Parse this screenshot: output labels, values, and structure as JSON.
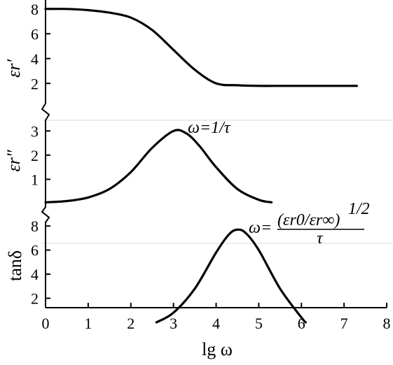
{
  "chart_data": {
    "type": "line",
    "xlabel": "lg ω",
    "x_ticks": [
      "0",
      "1",
      "2",
      "3",
      "4",
      "5",
      "6",
      "7",
      "8"
    ],
    "xlim": [
      0,
      8
    ],
    "panels": [
      {
        "ylabel": "εr′",
        "ylim": [
          1,
          9
        ],
        "y_ticks": [
          "2",
          "4",
          "6",
          "8"
        ],
        "annotation": "",
        "series": [
          {
            "x": [
              0,
              0.5,
              1,
              1.5,
              2,
              2.5,
              3,
              3.5,
              4,
              4.5,
              5,
              5.5,
              6,
              6.5,
              7,
              7.3
            ],
            "y": [
              8.0,
              8.0,
              7.9,
              7.7,
              7.3,
              6.3,
              4.7,
              3.1,
              2.0,
              1.85,
              1.8,
              1.8,
              1.8,
              1.8,
              1.8,
              1.8
            ]
          }
        ]
      },
      {
        "ylabel": "εr″",
        "ylim": [
          0,
          3.5
        ],
        "y_ticks": [
          "1",
          "2",
          "3"
        ],
        "annotation": "ω=1/τ",
        "series": [
          {
            "x": [
              0,
              0.5,
              1,
              1.5,
              2,
              2.5,
              3,
              3.3,
              3.6,
              4,
              4.5,
              5,
              5.3
            ],
            "y": [
              0.05,
              0.1,
              0.25,
              0.6,
              1.3,
              2.3,
              3.0,
              2.9,
              2.4,
              1.5,
              0.6,
              0.15,
              0.05
            ]
          }
        ]
      },
      {
        "ylabel": "tanδ",
        "ylim": [
          0,
          9
        ],
        "y_ticks": [
          "2",
          "4",
          "6",
          "8"
        ],
        "annotation": "ω=(εr0/εr∞)^1/2 / τ",
        "annotation_parts": {
          "lhs": "ω=",
          "numerator": "(εr0/εr∞)",
          "power": "1/2",
          "denominator": "τ"
        },
        "series": [
          {
            "x": [
              2.6,
              3,
              3.5,
              4,
              4.3,
              4.5,
              4.7,
              5,
              5.5,
              6,
              6.1
            ],
            "y": [
              0,
              0.8,
              2.8,
              5.8,
              7.3,
              7.7,
              7.4,
              6.0,
              2.8,
              0.4,
              0
            ]
          }
        ]
      }
    ]
  }
}
